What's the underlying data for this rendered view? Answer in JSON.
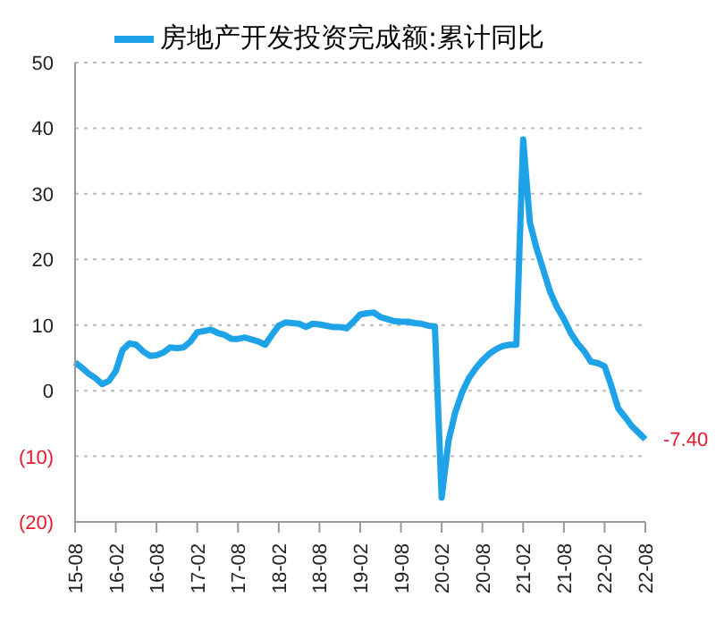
{
  "chart_data": {
    "type": "line",
    "categories": [
      "15-08",
      null,
      null,
      null,
      null,
      null,
      "16-02",
      null,
      null,
      null,
      null,
      null,
      "16-08",
      null,
      null,
      null,
      null,
      null,
      "17-02",
      null,
      null,
      null,
      null,
      null,
      "17-08",
      null,
      null,
      null,
      null,
      null,
      "18-02",
      null,
      null,
      null,
      null,
      null,
      "18-08",
      null,
      null,
      null,
      null,
      null,
      "19-02",
      null,
      null,
      null,
      null,
      null,
      "19-08",
      null,
      null,
      null,
      null,
      null,
      "20-02",
      null,
      null,
      null,
      null,
      null,
      "20-08",
      null,
      null,
      null,
      null,
      null,
      "21-02",
      null,
      null,
      null,
      null,
      null,
      "21-08",
      null,
      null,
      null,
      null,
      null,
      "22-02",
      null,
      null,
      null,
      null,
      null,
      "22-08"
    ],
    "series": [
      {
        "name": "房地产开发投资完成额:累计同比",
        "color": "#1fa3e8",
        "values": [
          4.3,
          3.5,
          2.6,
          1.9,
          1.0,
          1.5,
          3.0,
          6.2,
          7.2,
          7.0,
          6.0,
          5.3,
          5.4,
          5.8,
          6.6,
          6.5,
          6.6,
          7.5,
          8.9,
          9.1,
          9.3,
          8.8,
          8.5,
          7.9,
          7.9,
          8.1,
          7.8,
          7.5,
          7.0,
          8.5,
          9.9,
          10.4,
          10.3,
          10.2,
          9.7,
          10.2,
          10.1,
          9.9,
          9.7,
          9.7,
          9.5,
          10.5,
          11.6,
          11.8,
          11.9,
          11.2,
          10.9,
          10.6,
          10.5,
          10.5,
          10.3,
          10.2,
          9.9,
          9.8,
          -16.3,
          -7.7,
          -3.3,
          -0.3,
          1.9,
          3.4,
          4.6,
          5.6,
          6.3,
          6.8,
          7.0,
          7.0,
          38.3,
          25.6,
          21.6,
          18.3,
          15.0,
          12.7,
          10.9,
          8.8,
          7.2,
          6.0,
          4.4,
          4.2,
          3.7,
          0.7,
          -2.7,
          -4.0,
          -5.4,
          -6.4,
          -7.4
        ],
        "value_labels": [
          null,
          null,
          null,
          null,
          null,
          null,
          null,
          null,
          null,
          null,
          null,
          null,
          null,
          null,
          null,
          null,
          null,
          null,
          null,
          null,
          null,
          null,
          null,
          null,
          null,
          null,
          null,
          null,
          null,
          null,
          null,
          null,
          null,
          null,
          null,
          null,
          null,
          null,
          null,
          null,
          null,
          null,
          null,
          null,
          null,
          null,
          null,
          null,
          null,
          null,
          null,
          null,
          null,
          null,
          null,
          null,
          null,
          null,
          null,
          null,
          null,
          null,
          null,
          null,
          null,
          null,
          null,
          null,
          null,
          null,
          null,
          null,
          null,
          null,
          null,
          null,
          null,
          null,
          null,
          null,
          null,
          null,
          null,
          null,
          "-7.40"
        ]
      }
    ],
    "ylim": [
      -20,
      50
    ],
    "yticks": [
      {
        "value": -20,
        "label": "(20)"
      },
      {
        "value": -10,
        "label": "(10)"
      },
      0,
      10,
      20,
      30,
      40,
      50
    ],
    "grid": "y",
    "legend": "top",
    "marker": "none",
    "line_style": "solid"
  }
}
